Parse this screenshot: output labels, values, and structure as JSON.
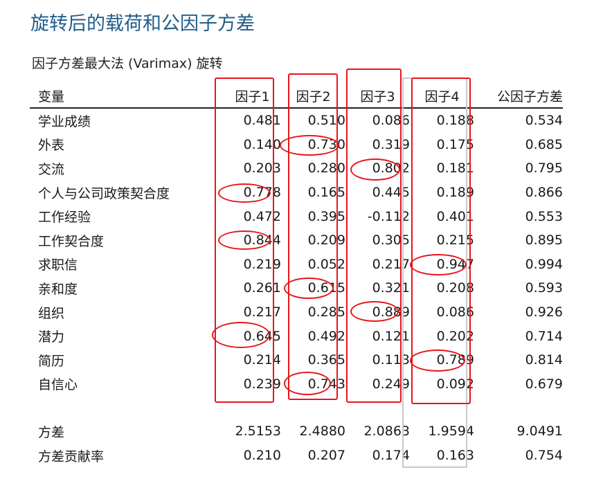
{
  "title": "旋转后的载荷和公因子方差",
  "subtitle": "因子方差最大法 (Varimax) 旋转",
  "headers": [
    "变量",
    "因子1",
    "因子2",
    "因子3",
    "因子4",
    "公因子方差"
  ],
  "rows": [
    {
      "name": "学业成绩",
      "values": [
        "0.481",
        "0.510",
        "0.086",
        "0.188",
        "0.534"
      ]
    },
    {
      "name": "外表",
      "values": [
        "0.140",
        "0.730",
        "0.319",
        "0.175",
        "0.685"
      ]
    },
    {
      "name": "交流",
      "values": [
        "0.203",
        "0.280",
        "0.802",
        "0.181",
        "0.795"
      ]
    },
    {
      "name": "个人与公司政策契合度",
      "values": [
        "0.778",
        "0.165",
        "0.445",
        "0.189",
        "0.866"
      ]
    },
    {
      "name": "工作经验",
      "values": [
        "0.472",
        "0.395",
        "-0.112",
        "0.401",
        "0.553"
      ]
    },
    {
      "name": "工作契合度",
      "values": [
        "0.844",
        "0.209",
        "0.305",
        "0.215",
        "0.895"
      ]
    },
    {
      "name": "求职信",
      "values": [
        "0.219",
        "0.052",
        "0.217",
        "0.947",
        "0.994"
      ]
    },
    {
      "name": "亲和度",
      "values": [
        "0.261",
        "0.615",
        "0.321",
        "0.208",
        "0.593"
      ]
    },
    {
      "name": "组织",
      "values": [
        "0.217",
        "0.285",
        "0.889",
        "0.086",
        "0.926"
      ]
    },
    {
      "name": "潜力",
      "values": [
        "0.645",
        "0.492",
        "0.121",
        "0.202",
        "0.714"
      ]
    },
    {
      "name": "简历",
      "values": [
        "0.214",
        "0.365",
        "0.113",
        "0.789",
        "0.814"
      ]
    },
    {
      "name": "自信心",
      "values": [
        "0.239",
        "0.743",
        "0.249",
        "0.092",
        "0.679"
      ]
    }
  ],
  "summary": [
    {
      "name": "方差",
      "values": [
        "2.5153",
        "2.4880",
        "2.0863",
        "1.9594",
        "9.0491"
      ]
    },
    {
      "name": "方差贡献率",
      "values": [
        "0.210",
        "0.207",
        "0.174",
        "0.163",
        "0.754"
      ]
    }
  ],
  "highlight_color": "#e8141c",
  "title_color": "#1f5d8a"
}
